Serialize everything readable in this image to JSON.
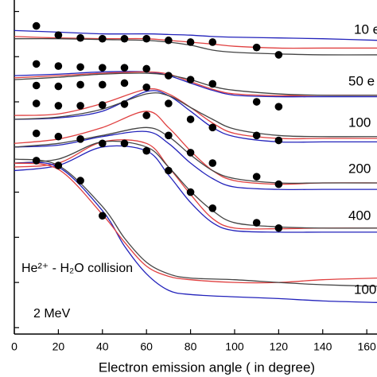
{
  "chart_data": {
    "type": "line",
    "x_label": "Electron emission angle ( in degree)",
    "annotations": [
      "He²⁺ - H₂O collision",
      "2 MeV"
    ],
    "energy_labels": [
      "10 e",
      "50 e",
      "100",
      "200",
      "400",
      "100"
    ],
    "xlim": [
      0,
      165
    ],
    "xticks": [
      0,
      20,
      40,
      60,
      80,
      100,
      120,
      140,
      160
    ],
    "ylim": [
      7.2e-25,
      1.8e-17
    ],
    "yticks": [
      1e-24,
      1e-23,
      1e-22,
      1e-21,
      1e-20,
      1e-19,
      1e-18,
      1e-17
    ],
    "log_y": true,
    "series": [
      {
        "type": "scatter",
        "color": "#000000",
        "x": [
          10,
          20,
          30,
          40,
          50,
          60,
          70,
          80,
          90,
          110,
          120
        ],
        "values": [
          4.8e-18,
          3e-18,
          2.6e-18,
          2.5e-18,
          2.5e-18,
          2.5e-18,
          2.3e-18,
          2.1e-18,
          2.1e-18,
          1.6e-18,
          1.1e-18
        ]
      },
      {
        "type": "line",
        "color": "#2222bb",
        "x": [
          0,
          20,
          40,
          60,
          70,
          80,
          90,
          100,
          120,
          140,
          165
        ],
        "values": [
          3.8e-18,
          3.5e-18,
          3.2e-18,
          3.2e-18,
          3.1e-18,
          3e-18,
          2.8e-18,
          2.7e-18,
          2.6e-18,
          2.5e-18,
          2.3e-18
        ]
      },
      {
        "type": "line",
        "color": "#e04040",
        "x": [
          0,
          20,
          40,
          60,
          70,
          80,
          90,
          100,
          120,
          140,
          165
        ],
        "values": [
          2.8e-18,
          2.6e-18,
          2.5e-18,
          2.5e-18,
          2.3e-18,
          2.1e-18,
          1.9e-18,
          1.7e-18,
          1.55e-18,
          1.55e-18,
          1.55e-18
        ]
      },
      {
        "type": "line",
        "color": "#444444",
        "x": [
          0,
          20,
          40,
          60,
          70,
          80,
          90,
          100,
          120,
          140,
          165
        ],
        "values": [
          2.5e-18,
          2.5e-18,
          2.4e-18,
          2.3e-18,
          2.1e-18,
          1.8e-18,
          1.4e-18,
          1.25e-18,
          1.15e-18,
          1.1e-18,
          1.1e-18
        ]
      },
      {
        "type": "scatter",
        "color": "#000000",
        "x": [
          10,
          20,
          30,
          40,
          50,
          60,
          70,
          80,
          90,
          110,
          120
        ],
        "values": [
          6.9e-19,
          6.2e-19,
          5.9e-19,
          5.7e-19,
          5.7e-19,
          5.4e-19,
          3.8e-19,
          3.1e-19,
          2.5e-19,
          1e-19,
          7.8e-20
        ]
      },
      {
        "type": "line",
        "color": "#2222bb",
        "x": [
          0,
          20,
          40,
          60,
          70,
          80,
          90,
          100,
          120,
          140,
          165
        ],
        "values": [
          3.8e-19,
          4.1e-19,
          4.6e-19,
          4.6e-19,
          3.8e-19,
          2.6e-19,
          1.8e-19,
          1.4e-19,
          1.3e-19,
          1.3e-19,
          1.3e-19
        ]
      },
      {
        "type": "line",
        "color": "#e04040",
        "x": [
          0,
          20,
          40,
          60,
          70,
          80,
          90,
          100,
          120,
          140,
          165
        ],
        "values": [
          3.4e-19,
          3.8e-19,
          4.3e-19,
          4.6e-19,
          4.1e-19,
          2.8e-19,
          1.9e-19,
          1.5e-19,
          1.37e-19,
          1.4e-19,
          1.4e-19
        ]
      },
      {
        "type": "line",
        "color": "#444444",
        "x": [
          0,
          20,
          40,
          60,
          70,
          80,
          90,
          100,
          120,
          140,
          165
        ],
        "values": [
          3.1e-19,
          3.5e-19,
          4.1e-19,
          4.3e-19,
          3.9e-19,
          3.1e-19,
          2.2e-19,
          1.8e-19,
          1.5e-19,
          1.4e-19,
          1.4e-19
        ]
      },
      {
        "type": "scatter",
        "color": "#000000",
        "x": [
          10,
          20,
          30,
          40,
          50,
          60,
          70,
          80,
          90,
          110,
          120
        ],
        "values": [
          2.3e-19,
          2.2e-19,
          2.4e-19,
          2.4e-19,
          2.6e-19,
          2.1e-19,
          9.2e-20,
          4.1e-20,
          2.7e-20,
          1.8e-20,
          1.4e-20
        ]
      },
      {
        "type": "line",
        "color": "#2222bb",
        "x": [
          0,
          20,
          40,
          60,
          70,
          80,
          90,
          100,
          120,
          140,
          165
        ],
        "values": [
          4.1e-20,
          4.4e-20,
          6.2e-20,
          1.7e-19,
          1.37e-19,
          6.2e-20,
          2.7e-20,
          1.7e-20,
          1.3e-20,
          1.3e-20,
          1.3e-20
        ]
      },
      {
        "type": "line",
        "color": "#e04040",
        "x": [
          0,
          20,
          40,
          60,
          70,
          80,
          90,
          100,
          120,
          140,
          165
        ],
        "values": [
          5e-20,
          5.4e-20,
          9.2e-20,
          1.9e-19,
          1.5e-19,
          7.5e-20,
          3.4e-20,
          2e-20,
          1.55e-20,
          1.55e-20,
          1.55e-20
        ]
      },
      {
        "type": "line",
        "color": "#444444",
        "x": [
          0,
          20,
          40,
          60,
          70,
          80,
          90,
          100,
          120,
          140,
          165
        ],
        "values": [
          4.1e-20,
          4.6e-20,
          6.9e-20,
          1.5e-19,
          1.37e-19,
          7.5e-20,
          4.1e-20,
          2.5e-20,
          1.8e-20,
          1.7e-20,
          1.7e-20
        ]
      },
      {
        "type": "scatter",
        "color": "#000000",
        "x": [
          10,
          20,
          30,
          40,
          50,
          60,
          70,
          80,
          90,
          110,
          120
        ],
        "values": [
          9.2e-20,
          8.2e-20,
          8.2e-20,
          8.5e-20,
          8.9e-20,
          5e-20,
          1.8e-20,
          7.5e-21,
          4.4e-21,
          2.2e-21,
          1.5e-21
        ]
      },
      {
        "type": "line",
        "color": "#2222bb",
        "x": [
          0,
          20,
          40,
          60,
          70,
          80,
          90,
          100,
          120,
          140,
          165
        ],
        "values": [
          1e-20,
          1.1e-20,
          1.7e-20,
          2.2e-20,
          1.2e-20,
          4.4e-21,
          2e-21,
          1.3e-21,
          1.15e-21,
          1.15e-21,
          1.15e-21
        ]
      },
      {
        "type": "line",
        "color": "#e04040",
        "x": [
          0,
          20,
          40,
          60,
          70,
          80,
          90,
          100,
          120,
          140,
          165
        ],
        "values": [
          1.2e-20,
          1.5e-20,
          2.7e-20,
          6.2e-20,
          2.7e-20,
          8.2e-21,
          3e-21,
          1.8e-21,
          1.5e-21,
          1.6e-21,
          1.6e-21
        ]
      },
      {
        "type": "line",
        "color": "#444444",
        "x": [
          0,
          20,
          40,
          60,
          70,
          80,
          90,
          100,
          120,
          140,
          165
        ],
        "values": [
          1e-20,
          1.2e-20,
          1.8e-20,
          2.7e-20,
          1.7e-20,
          6.7e-21,
          3e-21,
          2e-21,
          1.6e-21,
          1.6e-21,
          1.6e-21
        ]
      },
      {
        "type": "scatter",
        "color": "#000000",
        "x": [
          10,
          20,
          30,
          40,
          50,
          60,
          70,
          80,
          90,
          110,
          120
        ],
        "values": [
          2e-20,
          1.7e-20,
          1.5e-20,
          1.2e-20,
          1.2e-20,
          8.2e-21,
          3e-21,
          1e-21,
          4.4e-22,
          2.1e-22,
          1.6e-22
        ]
      },
      {
        "type": "line",
        "color": "#2222bb",
        "x": [
          0,
          20,
          40,
          60,
          70,
          80,
          90,
          100,
          120,
          140,
          165
        ],
        "values": [
          3e-21,
          3.9e-21,
          1e-20,
          8.2e-21,
          2.4e-21,
          5.9e-22,
          2.1e-22,
          1.4e-22,
          1.3e-22,
          1.3e-22,
          1.3e-22
        ]
      },
      {
        "type": "line",
        "color": "#e04040",
        "x": [
          0,
          20,
          40,
          60,
          70,
          80,
          90,
          100,
          120,
          140,
          165
        ],
        "values": [
          3.6e-21,
          4.4e-21,
          1.3e-20,
          1.2e-20,
          3.6e-21,
          8.9e-22,
          2.6e-22,
          1.6e-22,
          1.55e-22,
          1.6e-22,
          1.6e-22
        ]
      },
      {
        "type": "line",
        "color": "#444444",
        "x": [
          0,
          20,
          40,
          60,
          70,
          80,
          90,
          100,
          120,
          140,
          165
        ],
        "values": [
          4.4e-21,
          5.4e-21,
          1.3e-20,
          1e-20,
          3.6e-21,
          1.05e-21,
          3.9e-22,
          2.1e-22,
          1.7e-22,
          1.6e-22,
          1.6e-22
        ]
      },
      {
        "type": "scatter",
        "color": "#000000",
        "x": [
          10,
          20,
          30,
          40
        ],
        "values": [
          5e-21,
          3.9e-21,
          1.8e-21,
          3e-22
        ]
      },
      {
        "type": "line",
        "color": "#2222bb",
        "x": [
          0,
          20,
          40,
          50,
          60,
          70,
          80,
          100,
          120,
          140,
          165
        ],
        "values": [
          4.4e-21,
          3.6e-21,
          3.9e-22,
          6.4e-23,
          1.55e-23,
          6.7e-24,
          5.4e-24,
          4.8e-24,
          4.4e-24,
          3.9e-24,
          3.6e-24
        ]
      },
      {
        "type": "line",
        "color": "#e04040",
        "x": [
          0,
          20,
          40,
          50,
          60,
          70,
          80,
          100,
          120,
          140,
          165
        ],
        "values": [
          4.4e-21,
          3.2e-21,
          3.2e-22,
          7.8e-23,
          2.3e-23,
          1.37e-23,
          1.15e-23,
          1e-23,
          1e-23,
          1.15e-23,
          1.25e-23
        ]
      },
      {
        "type": "line",
        "color": "#444444",
        "x": [
          0,
          20,
          40,
          50,
          60,
          70,
          80,
          100,
          120,
          140,
          165
        ],
        "values": [
          5.4e-21,
          3.9e-21,
          4.8e-22,
          9.6e-23,
          2.8e-23,
          1.55e-23,
          1.25e-23,
          1.15e-23,
          1e-23,
          8.9e-24,
          8.2e-24
        ]
      }
    ]
  }
}
